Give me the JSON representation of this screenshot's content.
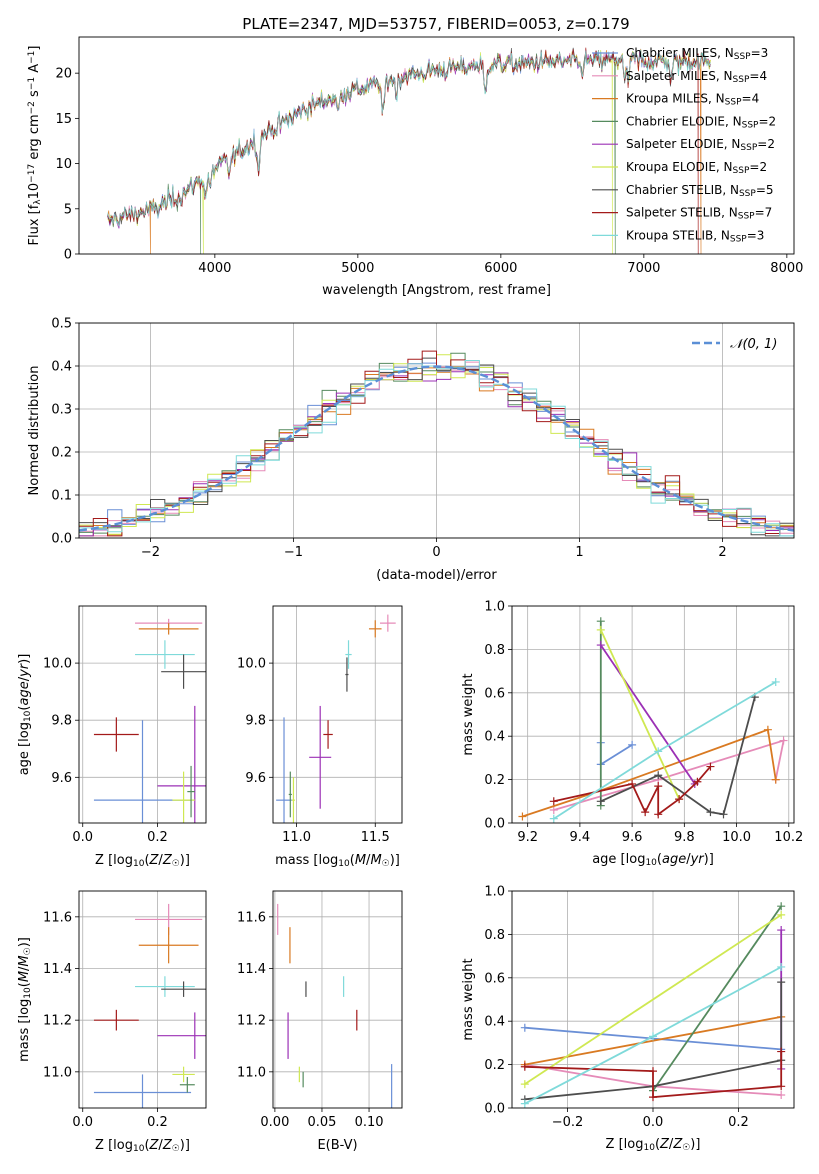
{
  "figure": {
    "title": "PLATE=2347, MJD=53757, FIBERID=0053, z=0.179"
  },
  "chart_data": [
    {
      "id": "spectrum",
      "type": "line",
      "xlabel": "wavelength [Angstrom, rest frame]",
      "ylabel": "Flux [f_λ10^-17 erg cm^-2 s^-1 A^-1]",
      "ylabel_parts": {
        "main": "Flux [f",
        "sub1": "λ",
        "mid": "10",
        "sup1": "−17",
        "mid2": " erg cm",
        "sup2": "−2",
        "mid3": " s",
        "sup3": "−1",
        "mid4": " A",
        "sup4": "−1",
        "end": "]"
      },
      "xlim": [
        3050,
        8050
      ],
      "ylim": [
        0,
        24
      ],
      "xticks": [
        4000,
        5000,
        6000,
        7000,
        8000
      ],
      "yticks": [
        0,
        5,
        10,
        15,
        20
      ],
      "legend_position": "upper-right",
      "grid": false,
      "series": [
        {
          "name": "Chabrier MILES, N_SSP=3",
          "base": "Chabrier MILES, N",
          "sub": "SSP",
          "tail": "=3",
          "color": "#6a8fd6"
        },
        {
          "name": "Salpeter MILES, N_SSP=4",
          "base": "Salpeter MILES, N",
          "sub": "SSP",
          "tail": "=4",
          "color": "#e58bb8"
        },
        {
          "name": "Kroupa MILES, N_SSP=4",
          "base": "Kroupa MILES, N",
          "sub": "SSP",
          "tail": "=4",
          "color": "#d97a22"
        },
        {
          "name": "Chabrier ELODIE, N_SSP=2",
          "base": "Chabrier ELODIE, N",
          "sub": "SSP",
          "tail": "=2",
          "color": "#558a5e"
        },
        {
          "name": "Salpeter ELODIE, N_SSP=2",
          "base": "Salpeter ELODIE, N",
          "sub": "SSP",
          "tail": "=2",
          "color": "#9b30b5"
        },
        {
          "name": "Kroupa ELODIE, N_SSP=2",
          "base": "Kroupa ELODIE, N",
          "sub": "SSP",
          "tail": "=2",
          "color": "#cfe852"
        },
        {
          "name": "Chabrier STELIB, N_SSP=5",
          "base": "Chabrier STELIB, N",
          "sub": "SSP",
          "tail": "=5",
          "color": "#4d4d4d"
        },
        {
          "name": "Salpeter STELIB, N_SSP=7",
          "base": "Salpeter STELIB, N",
          "sub": "SSP",
          "tail": "=7",
          "color": "#a31a1a"
        },
        {
          "name": "Kroupa STELIB, N_SSP=3",
          "base": "Kroupa STELIB, N",
          "sub": "SSP",
          "tail": "=3",
          "color": "#7fdada"
        }
      ],
      "continuum": {
        "x": [
          3200,
          3400,
          3600,
          3800,
          3950,
          4100,
          4300,
          4500,
          4700,
          4900,
          5100,
          5300,
          5500,
          5700,
          5900,
          6100,
          6300,
          6500,
          6700,
          6900,
          7100,
          7300,
          7500
        ],
        "y": [
          3.3,
          4.3,
          5.1,
          6.9,
          9.0,
          10.5,
          12.8,
          14.8,
          16.6,
          17.8,
          18.6,
          19.6,
          20.2,
          20.6,
          21.0,
          21.0,
          21.2,
          21.3,
          21.4,
          21.5,
          21.3,
          21.3,
          21.3
        ]
      },
      "dropouts": [
        {
          "series": "Kroupa MILES, N_SSP=4",
          "x": [
            3550,
            7400
          ]
        },
        {
          "series": "Chabrier ELODIE, N_SSP=2",
          "x": [
            3900,
            6800
          ]
        },
        {
          "series": "Kroupa ELODIE, N_SSP=2",
          "x": [
            3920,
            6780
          ]
        },
        {
          "series": "Salpeter STELIB, N_SSP=7",
          "x": [
            7380
          ]
        }
      ]
    },
    {
      "id": "residuals",
      "type": "histogram",
      "xlabel": "(data-model)/error",
      "ylabel": "Normed distribution",
      "xlim": [
        -2.5,
        2.5
      ],
      "ylim": [
        0,
        0.5
      ],
      "xticks": [
        -2,
        -1,
        0,
        1,
        2
      ],
      "yticks": [
        0.0,
        0.1,
        0.2,
        0.3,
        0.4,
        0.5
      ],
      "grid": true,
      "reference": {
        "name": "N(0,1)",
        "label": "𝒩(0, 1)",
        "color": "#5b8fd6",
        "style": "dashed"
      },
      "bins": {
        "start": -2.5,
        "width": 0.1,
        "count": 50
      }
    },
    {
      "id": "z-age",
      "type": "errorbar",
      "xlabel": "Z [log10(Z/Z☉)]",
      "ylabel": "age [log10(age/yr)]",
      "xlim": [
        -0.01,
        0.33
      ],
      "ylim": [
        9.44,
        10.2
      ],
      "xticks": [
        0.0,
        0.2
      ],
      "yticks": [
        9.6,
        9.8,
        10.0
      ],
      "grid": true,
      "points": [
        {
          "series": "Salpeter MILES, N_SSP=4",
          "x": 0.23,
          "xerr": 0.09,
          "y": 10.14,
          "yerr": 0.015
        },
        {
          "series": "Kroupa MILES, N_SSP=4",
          "x": 0.23,
          "xerr": 0.08,
          "y": 10.12,
          "yerr": 0.02
        },
        {
          "series": "Kroupa STELIB, N_SSP=3",
          "x": 0.22,
          "xerr": 0.08,
          "y": 10.03,
          "yerr": 0.05
        },
        {
          "series": "Chabrier STELIB, N_SSP=5",
          "x": 0.27,
          "xerr": 0.06,
          "y": 9.97,
          "yerr": 0.06
        },
        {
          "series": "Salpeter STELIB, N_SSP=7",
          "x": 0.09,
          "xerr": 0.06,
          "y": 9.75,
          "yerr": 0.06
        },
        {
          "series": "Chabrier MILES, N_SSP=3",
          "x": 0.16,
          "xerr": 0.13,
          "y": 9.52,
          "yerr": 0.28
        },
        {
          "series": "Salpeter ELODIE, N_SSP=2",
          "x": 0.3,
          "xerr": 0.1,
          "y": 9.57,
          "yerr": 0.28
        },
        {
          "series": "Kroupa ELODIE, N_SSP=2",
          "x": 0.27,
          "xerr": 0.03,
          "y": 9.52,
          "yerr": 0.1
        },
        {
          "series": "Chabrier ELODIE, N_SSP=2",
          "x": 0.29,
          "xerr": 0.01,
          "y": 9.55,
          "yerr": 0.09
        }
      ]
    },
    {
      "id": "mass-age",
      "type": "errorbar",
      "xlabel": "mass [log10(M/M☉)]",
      "xlim": [
        10.85,
        11.67
      ],
      "ylim": [
        9.44,
        10.2
      ],
      "xticks": [
        11.0,
        11.5
      ],
      "yticks": [
        9.6,
        9.8,
        10.0
      ],
      "grid": true,
      "points": [
        {
          "series": "Salpeter MILES, N_SSP=4",
          "x": 11.58,
          "xerr": 0.05,
          "y": 10.14,
          "yerr": 0.03
        },
        {
          "series": "Kroupa MILES, N_SSP=4",
          "x": 11.5,
          "xerr": 0.04,
          "y": 10.12,
          "yerr": 0.03
        },
        {
          "series": "Kroupa STELIB, N_SSP=3",
          "x": 11.33,
          "xerr": 0.02,
          "y": 10.03,
          "yerr": 0.05
        },
        {
          "series": "Chabrier STELIB, N_SSP=5",
          "x": 11.32,
          "xerr": 0.01,
          "y": 9.96,
          "yerr": 0.06
        },
        {
          "series": "Salpeter STELIB, N_SSP=7",
          "x": 11.2,
          "xerr": 0.03,
          "y": 9.75,
          "yerr": 0.05
        },
        {
          "series": "Chabrier MILES, N_SSP=3",
          "x": 10.92,
          "xerr": 0.05,
          "y": 9.52,
          "yerr": 0.29
        },
        {
          "series": "Salpeter ELODIE, N_SSP=2",
          "x": 11.15,
          "xerr": 0.07,
          "y": 9.67,
          "yerr": 0.18
        },
        {
          "series": "Kroupa ELODIE, N_SSP=2",
          "x": 10.98,
          "xerr": 0.01,
          "y": 9.52,
          "yerr": 0.08
        },
        {
          "series": "Chabrier ELODIE, N_SSP=2",
          "x": 10.96,
          "xerr": 0.01,
          "y": 9.54,
          "yerr": 0.08
        }
      ]
    },
    {
      "id": "age-weight",
      "type": "line",
      "xlabel": "age [log10(age/yr)]",
      "ylabel": "mass weight",
      "xlim": [
        9.14,
        10.22
      ],
      "ylim": [
        0,
        1
      ],
      "xticks": [
        9.2,
        9.4,
        9.6,
        9.8,
        10.0,
        10.2
      ],
      "yticks": [
        0.0,
        0.2,
        0.4,
        0.6,
        0.8,
        1.0
      ],
      "grid": true,
      "series": [
        {
          "series": "Chabrier MILES, N_SSP=3",
          "x": [
            9.48,
            9.48,
            9.6
          ],
          "y": [
            0.37,
            0.27,
            0.36
          ]
        },
        {
          "series": "Salpeter MILES, N_SSP=4",
          "x": [
            9.3,
            9.7,
            10.18,
            10.15
          ],
          "y": [
            0.06,
            0.2,
            0.38,
            0.2
          ]
        },
        {
          "series": "Kroupa MILES, N_SSP=4",
          "x": [
            9.18,
            9.48,
            10.12,
            10.15
          ],
          "y": [
            0.03,
            0.15,
            0.43,
            0.2
          ]
        },
        {
          "series": "Chabrier ELODIE, N_SSP=2",
          "x": [
            9.48,
            9.48
          ],
          "y": [
            0.93,
            0.08
          ]
        },
        {
          "series": "Salpeter ELODIE, N_SSP=2",
          "x": [
            9.48,
            9.84
          ],
          "y": [
            0.82,
            0.18
          ]
        },
        {
          "series": "Kroupa ELODIE, N_SSP=2",
          "x": [
            9.48,
            9.78
          ],
          "y": [
            0.89,
            0.11
          ]
        },
        {
          "series": "Chabrier STELIB, N_SSP=5",
          "x": [
            9.48,
            9.7,
            9.9,
            9.95,
            10.07
          ],
          "y": [
            0.1,
            0.22,
            0.05,
            0.04,
            0.58
          ]
        },
        {
          "series": "Salpeter STELIB, N_SSP=7",
          "x": [
            9.3,
            9.6,
            9.65,
            9.7,
            9.7,
            9.78,
            9.85,
            9.9
          ],
          "y": [
            0.1,
            0.18,
            0.05,
            0.17,
            0.04,
            0.11,
            0.19,
            0.26
          ]
        },
        {
          "series": "Kroupa STELIB, N_SSP=3",
          "x": [
            9.3,
            9.7,
            10.15
          ],
          "y": [
            0.02,
            0.33,
            0.65
          ]
        }
      ]
    },
    {
      "id": "z-mass",
      "type": "errorbar",
      "xlabel": "Z [log10(Z/Z☉)]",
      "ylabel": "mass [log10(M/M☉)]",
      "xlim": [
        -0.01,
        0.33
      ],
      "ylim": [
        10.86,
        11.7
      ],
      "xticks": [
        0.0,
        0.2
      ],
      "yticks": [
        11.0,
        11.2,
        11.4,
        11.6
      ],
      "grid": true,
      "points": [
        {
          "series": "Salpeter MILES, N_SSP=4",
          "x": 0.23,
          "xerr": 0.09,
          "y": 11.59,
          "yerr": 0.06
        },
        {
          "series": "Kroupa MILES, N_SSP=4",
          "x": 0.23,
          "xerr": 0.08,
          "y": 11.49,
          "yerr": 0.07
        },
        {
          "series": "Kroupa STELIB, N_SSP=3",
          "x": 0.22,
          "xerr": 0.08,
          "y": 11.33,
          "yerr": 0.04
        },
        {
          "series": "Chabrier STELIB, N_SSP=5",
          "x": 0.27,
          "xerr": 0.06,
          "y": 11.32,
          "yerr": 0.03
        },
        {
          "series": "Salpeter STELIB, N_SSP=7",
          "x": 0.09,
          "xerr": 0.06,
          "y": 11.2,
          "yerr": 0.04
        },
        {
          "series": "Salpeter ELODIE, N_SSP=2",
          "x": 0.3,
          "xerr": 0.1,
          "y": 11.14,
          "yerr": 0.09
        },
        {
          "series": "Chabrier MILES, N_SSP=3",
          "x": 0.16,
          "xerr": 0.13,
          "y": 10.92,
          "yerr": 0.07
        },
        {
          "series": "Kroupa ELODIE, N_SSP=2",
          "x": 0.27,
          "xerr": 0.03,
          "y": 10.99,
          "yerr": 0.03
        },
        {
          "series": "Chabrier ELODIE, N_SSP=2",
          "x": 0.28,
          "xerr": 0.02,
          "y": 10.95,
          "yerr": 0.03
        }
      ]
    },
    {
      "id": "ebv-mass",
      "type": "errorbar",
      "xlabel": "E(B-V)",
      "xlim": [
        -0.002,
        0.135
      ],
      "ylim": [
        10.86,
        11.7
      ],
      "xticks": [
        0.0,
        0.05,
        0.1
      ],
      "yticks": [
        11.0,
        11.2,
        11.4,
        11.6
      ],
      "grid": true,
      "points": [
        {
          "series": "Salpeter MILES, N_SSP=4",
          "x": 0.003,
          "xerr": 0,
          "y": 11.59,
          "yerr": 0.06
        },
        {
          "series": "Kroupa MILES, N_SSP=4",
          "x": 0.016,
          "xerr": 0,
          "y": 11.49,
          "yerr": 0.07
        },
        {
          "series": "Chabrier STELIB, N_SSP=5",
          "x": 0.033,
          "xerr": 0,
          "y": 11.32,
          "yerr": 0.03
        },
        {
          "series": "Kroupa STELIB, N_SSP=3",
          "x": 0.073,
          "xerr": 0,
          "y": 11.33,
          "yerr": 0.04
        },
        {
          "series": "Salpeter ELODIE, N_SSP=2",
          "x": 0.014,
          "xerr": 0,
          "y": 11.14,
          "yerr": 0.09
        },
        {
          "series": "Salpeter STELIB, N_SSP=7",
          "x": 0.087,
          "xerr": 0,
          "y": 11.2,
          "yerr": 0.04
        },
        {
          "series": "Kroupa ELODIE, N_SSP=2",
          "x": 0.026,
          "xerr": 0,
          "y": 10.99,
          "yerr": 0.03
        },
        {
          "series": "Chabrier ELODIE, N_SSP=2",
          "x": 0.03,
          "xerr": 0,
          "y": 10.97,
          "yerr": 0.03
        },
        {
          "series": "Chabrier MILES, N_SSP=3",
          "x": 0.124,
          "xerr": 0,
          "y": 10.94,
          "yerr": 0.09
        }
      ]
    },
    {
      "id": "z-weight",
      "type": "line",
      "xlabel": "Z [log10(Z/Z☉)]",
      "ylabel": "mass weight",
      "xlim": [
        -0.33,
        0.33
      ],
      "ylim": [
        0,
        1
      ],
      "xticks": [
        -0.2,
        0.0,
        0.2
      ],
      "yticks": [
        0.0,
        0.2,
        0.4,
        0.6,
        0.8,
        1.0
      ],
      "grid": true,
      "series": [
        {
          "series": "Chabrier MILES, N_SSP=3",
          "x": [
            -0.3,
            0.3
          ],
          "y": [
            0.37,
            0.27
          ]
        },
        {
          "series": "Salpeter MILES, N_SSP=4",
          "x": [
            -0.3,
            0.0,
            0.3
          ],
          "y": [
            0.2,
            0.1,
            0.06
          ]
        },
        {
          "series": "Kroupa MILES, N_SSP=4",
          "x": [
            -0.3,
            0.3
          ],
          "y": [
            0.2,
            0.42
          ]
        },
        {
          "series": "Chabrier ELODIE, N_SSP=2",
          "x": [
            0.0,
            0.3
          ],
          "y": [
            0.08,
            0.93
          ]
        },
        {
          "series": "Salpeter ELODIE, N_SSP=2",
          "x": [
            0.3,
            0.3
          ],
          "y": [
            0.82,
            0.18
          ]
        },
        {
          "series": "Kroupa ELODIE, N_SSP=2",
          "x": [
            -0.3,
            0.3
          ],
          "y": [
            0.11,
            0.89
          ]
        },
        {
          "series": "Chabrier STELIB, N_SSP=5",
          "x": [
            -0.3,
            0.0,
            0.3,
            0.3
          ],
          "y": [
            0.04,
            0.1,
            0.22,
            0.58
          ]
        },
        {
          "series": "Salpeter STELIB, N_SSP=7",
          "x": [
            -0.3,
            0.0,
            0.0,
            0.3,
            0.3
          ],
          "y": [
            0.19,
            0.17,
            0.05,
            0.1,
            0.26
          ]
        },
        {
          "series": "Kroupa STELIB, N_SSP=3",
          "x": [
            -0.3,
            0.0,
            0.3
          ],
          "y": [
            0.02,
            0.33,
            0.65
          ]
        }
      ]
    }
  ]
}
